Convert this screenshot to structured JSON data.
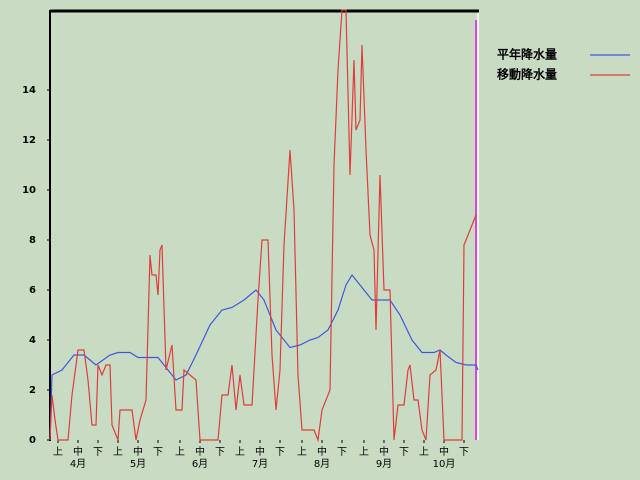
{
  "chart_data": {
    "type": "line",
    "xlim": [
      0,
      214
    ],
    "ylim": [
      0,
      17.2
    ],
    "yticks": [
      0,
      2,
      4,
      6,
      8,
      10,
      12,
      14
    ],
    "xticks": [
      {
        "value": 4,
        "label": "上"
      },
      {
        "value": 14,
        "label": "中"
      },
      {
        "value": 24,
        "label": "下"
      },
      {
        "value": 34,
        "label": "上"
      },
      {
        "value": 44,
        "label": "中"
      },
      {
        "value": 54,
        "label": "下"
      },
      {
        "value": 65,
        "label": "上"
      },
      {
        "value": 75,
        "label": "中"
      },
      {
        "value": 85,
        "label": "下"
      },
      {
        "value": 95,
        "label": "上"
      },
      {
        "value": 105,
        "label": "中"
      },
      {
        "value": 115,
        "label": "下"
      },
      {
        "value": 126,
        "label": "上"
      },
      {
        "value": 136,
        "label": "中"
      },
      {
        "value": 146,
        "label": "下"
      },
      {
        "value": 157,
        "label": "上"
      },
      {
        "value": 167,
        "label": "中"
      },
      {
        "value": 177,
        "label": "下"
      },
      {
        "value": 187,
        "label": "上"
      },
      {
        "value": 197,
        "label": "中"
      },
      {
        "value": 207,
        "label": "下"
      }
    ],
    "month_labels": [
      {
        "value": 14,
        "label": "4月"
      },
      {
        "value": 44,
        "label": "5月"
      },
      {
        "value": 75,
        "label": "6月"
      },
      {
        "value": 105,
        "label": "7月"
      },
      {
        "value": 136,
        "label": "8月"
      },
      {
        "value": 167,
        "label": "9月"
      },
      {
        "value": 197,
        "label": "10月"
      }
    ],
    "series": [
      {
        "name": "平年降水量",
        "color": "#4455dd",
        "x": [
          0,
          1,
          6,
          12,
          17,
          23,
          30,
          34,
          40,
          44,
          54,
          59,
          63,
          68,
          73,
          80,
          86,
          91,
          97,
          103,
          107,
          113,
          120,
          125,
          130,
          134,
          139,
          144,
          148,
          151,
          155,
          161,
          170,
          175,
          181,
          186,
          192,
          195,
          198,
          203,
          208,
          213,
          214
        ],
        "values": [
          0,
          2.6,
          2.8,
          3.4,
          3.4,
          3,
          3.4,
          3.5,
          3.5,
          3.3,
          3.3,
          2.8,
          2.4,
          2.6,
          3.4,
          4.6,
          5.2,
          5.3,
          5.6,
          6,
          5.6,
          4.4,
          3.7,
          3.8,
          4,
          4.1,
          4.4,
          5.2,
          6.2,
          6.6,
          6.2,
          5.6,
          5.6,
          5,
          4,
          3.5,
          3.5,
          3.6,
          3.4,
          3.1,
          3,
          3,
          2.8
        ]
      },
      {
        "name": "移動降水量",
        "color": "#e03c3c",
        "x": [
          0,
          1,
          2.5,
          4,
          9,
          11,
          14,
          17,
          19,
          21,
          23,
          24,
          26,
          28,
          30,
          31,
          34,
          35,
          41,
          43,
          45,
          48,
          50,
          51,
          53,
          54,
          55,
          56,
          58,
          61,
          63,
          66,
          67,
          70,
          73,
          75,
          84,
          86,
          89,
          91,
          93,
          95,
          97,
          101,
          104,
          106,
          109,
          111,
          113,
          115,
          117,
          120,
          122,
          124,
          126,
          132,
          134,
          136,
          140,
          142,
          144,
          146,
          148,
          150,
          152,
          153,
          155,
          156,
          158,
          160,
          162,
          163,
          165,
          167,
          170,
          172,
          174,
          177,
          179,
          180,
          182,
          184,
          186,
          188,
          190,
          193,
          195,
          197,
          206,
          207,
          209,
          212,
          213
        ],
        "values": [
          0,
          1.8,
          0.8,
          0,
          0,
          1.8,
          3.6,
          3.6,
          2.4,
          0.6,
          0.6,
          3,
          2.6,
          3,
          3,
          0.6,
          0,
          1.2,
          1.2,
          0,
          0.8,
          1.6,
          7.4,
          6.6,
          6.6,
          5.8,
          7.6,
          7.8,
          2.8,
          3.8,
          1.2,
          1.2,
          2.8,
          2.6,
          2.4,
          0,
          0,
          1.8,
          1.8,
          3,
          1.2,
          2.6,
          1.4,
          1.4,
          5.6,
          8,
          8,
          3.4,
          1.2,
          2.8,
          7.8,
          11.6,
          9.2,
          2.6,
          0.4,
          0.4,
          0,
          1.2,
          2,
          11,
          14.8,
          17.2,
          17.2,
          10.6,
          15.2,
          12.4,
          12.8,
          15.8,
          11.6,
          8.2,
          7.6,
          4.4,
          10.6,
          6,
          6,
          0,
          1.4,
          1.4,
          2.8,
          3,
          1.6,
          1.6,
          0.4,
          0,
          2.6,
          2.8,
          3.6,
          0,
          0,
          7.8,
          8.2,
          8.8,
          9
        ]
      }
    ]
  }
}
